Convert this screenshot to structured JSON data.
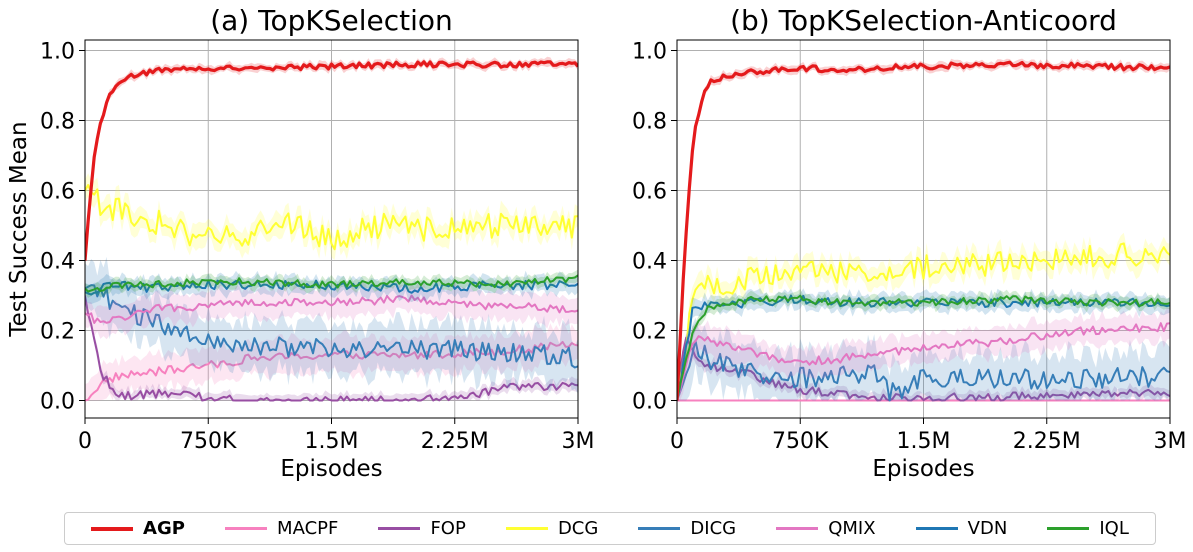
{
  "chart_data": [
    {
      "type": "line",
      "title": "(a) TopKSelection",
      "xlabel": "Episodes",
      "ylabel": "Test Success Mean",
      "xlim": [
        0,
        3000000
      ],
      "ylim": [
        -0.05,
        1.03
      ],
      "xticks": [
        0,
        750000,
        1500000,
        2250000,
        3000000
      ],
      "xtick_labels": [
        "0",
        "750K",
        "1.5M",
        "2.25M",
        "3M"
      ],
      "yticks": [
        0.0,
        0.2,
        0.4,
        0.6,
        0.8,
        1.0
      ],
      "ytick_labels": [
        "0.0",
        "0.2",
        "0.4",
        "0.6",
        "0.8",
        "1.0"
      ],
      "grid": true,
      "series": [
        {
          "name": "AGP",
          "x": [
            0,
            50000,
            100000,
            150000,
            200000,
            300000,
            500000,
            750000,
            1000000,
            1500000,
            2000000,
            2500000,
            3000000
          ],
          "values": [
            0.4,
            0.68,
            0.8,
            0.87,
            0.91,
            0.93,
            0.945,
            0.95,
            0.95,
            0.955,
            0.96,
            0.96,
            0.96
          ]
        },
        {
          "name": "MACPF",
          "x": [
            0,
            100000,
            200000,
            400000,
            750000,
            1000000,
            1500000,
            2000000,
            2500000,
            3000000
          ],
          "values": [
            0.0,
            0.05,
            0.07,
            0.08,
            0.1,
            0.12,
            0.13,
            0.13,
            0.14,
            0.16
          ]
        },
        {
          "name": "FOP",
          "x": [
            0,
            100000,
            200000,
            400000,
            750000,
            1000000,
            1500000,
            2000000,
            2300000,
            2600000,
            3000000
          ],
          "values": [
            0.3,
            0.08,
            0.01,
            0.02,
            0.01,
            0.0,
            0.0,
            0.0,
            0.01,
            0.04,
            0.04
          ]
        },
        {
          "name": "DCG",
          "x": [
            0,
            50000,
            100000,
            300000,
            500000,
            750000,
            1000000,
            1200000,
            1500000,
            1800000,
            2000000,
            2500000,
            3000000
          ],
          "values": [
            0.6,
            0.58,
            0.56,
            0.53,
            0.5,
            0.46,
            0.47,
            0.52,
            0.46,
            0.5,
            0.49,
            0.5,
            0.5
          ]
        },
        {
          "name": "DICG",
          "x": [
            0,
            100000,
            200000,
            400000,
            750000,
            1000000,
            1500000,
            2000000,
            2500000,
            3000000
          ],
          "values": [
            0.32,
            0.3,
            0.28,
            0.22,
            0.18,
            0.16,
            0.15,
            0.15,
            0.14,
            0.12
          ]
        },
        {
          "name": "QMIX",
          "x": [
            0,
            100000,
            200000,
            400000,
            750000,
            1000000,
            1500000,
            2000000,
            2500000,
            3000000
          ],
          "values": [
            0.25,
            0.22,
            0.23,
            0.26,
            0.27,
            0.28,
            0.28,
            0.29,
            0.27,
            0.26
          ]
        },
        {
          "name": "VDN",
          "x": [
            0,
            100000,
            200000,
            400000,
            750000,
            1000000,
            1500000,
            2000000,
            2500000,
            3000000
          ],
          "values": [
            0.31,
            0.32,
            0.33,
            0.32,
            0.33,
            0.33,
            0.33,
            0.32,
            0.33,
            0.33
          ]
        },
        {
          "name": "IQL",
          "x": [
            0,
            100000,
            200000,
            400000,
            750000,
            1000000,
            1500000,
            2000000,
            2500000,
            3000000
          ],
          "values": [
            0.32,
            0.32,
            0.33,
            0.33,
            0.34,
            0.34,
            0.33,
            0.34,
            0.33,
            0.35
          ]
        }
      ]
    },
    {
      "type": "line",
      "title": "(b) TopKSelection-Anticoord",
      "xlabel": "Episodes",
      "ylabel": "",
      "xlim": [
        0,
        3000000
      ],
      "ylim": [
        -0.05,
        1.03
      ],
      "xticks": [
        0,
        750000,
        1500000,
        2250000,
        3000000
      ],
      "xtick_labels": [
        "0",
        "750K",
        "1.5M",
        "2.25M",
        "3M"
      ],
      "yticks": [
        0.0,
        0.2,
        0.4,
        0.6,
        0.8,
        1.0
      ],
      "ytick_labels": [
        "0.0",
        "0.2",
        "0.4",
        "0.6",
        "0.8",
        "1.0"
      ],
      "grid": true,
      "series": [
        {
          "name": "AGP",
          "x": [
            0,
            50000,
            100000,
            150000,
            200000,
            300000,
            500000,
            750000,
            1000000,
            1500000,
            2000000,
            2500000,
            3000000
          ],
          "values": [
            0.0,
            0.45,
            0.75,
            0.86,
            0.91,
            0.93,
            0.94,
            0.95,
            0.945,
            0.955,
            0.96,
            0.955,
            0.95
          ]
        },
        {
          "name": "MACPF",
          "x": [
            0,
            3000000
          ],
          "values": [
            0.0,
            0.0
          ]
        },
        {
          "name": "FOP",
          "x": [
            0,
            50000,
            100000,
            200000,
            400000,
            600000,
            750000,
            1000000,
            1200000,
            1500000,
            2000000,
            2500000,
            3000000
          ],
          "values": [
            0.0,
            0.2,
            0.13,
            0.1,
            0.08,
            0.05,
            0.03,
            0.02,
            0.01,
            0.01,
            0.01,
            0.02,
            0.02
          ]
        },
        {
          "name": "DCG",
          "x": [
            0,
            100000,
            200000,
            500000,
            750000,
            1000000,
            1500000,
            2000000,
            2500000,
            3000000
          ],
          "values": [
            0.0,
            0.3,
            0.33,
            0.35,
            0.38,
            0.37,
            0.38,
            0.39,
            0.41,
            0.42
          ]
        },
        {
          "name": "DICG",
          "x": [
            0,
            100000,
            200000,
            400000,
            600000,
            900000,
            1200000,
            1300000,
            1500000,
            2000000,
            2500000,
            3000000
          ],
          "values": [
            0.0,
            0.15,
            0.12,
            0.08,
            0.07,
            0.06,
            0.08,
            0.02,
            0.06,
            0.06,
            0.06,
            0.07
          ]
        },
        {
          "name": "QMIX",
          "x": [
            0,
            100000,
            300000,
            500000,
            750000,
            1000000,
            1500000,
            2000000,
            2500000,
            3000000
          ],
          "values": [
            0.0,
            0.18,
            0.16,
            0.13,
            0.11,
            0.12,
            0.15,
            0.17,
            0.2,
            0.21
          ]
        },
        {
          "name": "VDN",
          "x": [
            0,
            100000,
            200000,
            500000,
            750000,
            1000000,
            1500000,
            2000000,
            2500000,
            3000000
          ],
          "values": [
            0.0,
            0.27,
            0.27,
            0.28,
            0.29,
            0.28,
            0.28,
            0.28,
            0.28,
            0.28
          ]
        },
        {
          "name": "IQL",
          "x": [
            0,
            100000,
            200000,
            500000,
            750000,
            1000000,
            1500000,
            2000000,
            2500000,
            3000000
          ],
          "values": [
            0.0,
            0.2,
            0.27,
            0.29,
            0.29,
            0.28,
            0.28,
            0.29,
            0.28,
            0.28
          ]
        }
      ]
    }
  ],
  "legend": {
    "items": [
      {
        "name": "AGP",
        "label": "AGP",
        "color": "#e41a1c",
        "bold": true
      },
      {
        "name": "MACPF",
        "label": "MACPF",
        "color": "#f781bf",
        "bold": false
      },
      {
        "name": "FOP",
        "label": "FOP",
        "color": "#984ea3",
        "bold": false
      },
      {
        "name": "DCG",
        "label": "DCG",
        "color": "#ffff33",
        "bold": false
      },
      {
        "name": "DICG",
        "label": "DICG",
        "color": "#377eb8",
        "bold": false
      },
      {
        "name": "QMIX",
        "label": "QMIX",
        "color": "#e377c2",
        "bold": false
      },
      {
        "name": "VDN",
        "label": "VDN",
        "color": "#1f77b4",
        "bold": false
      },
      {
        "name": "IQL",
        "label": "IQL",
        "color": "#2ca02c",
        "bold": false
      }
    ]
  }
}
